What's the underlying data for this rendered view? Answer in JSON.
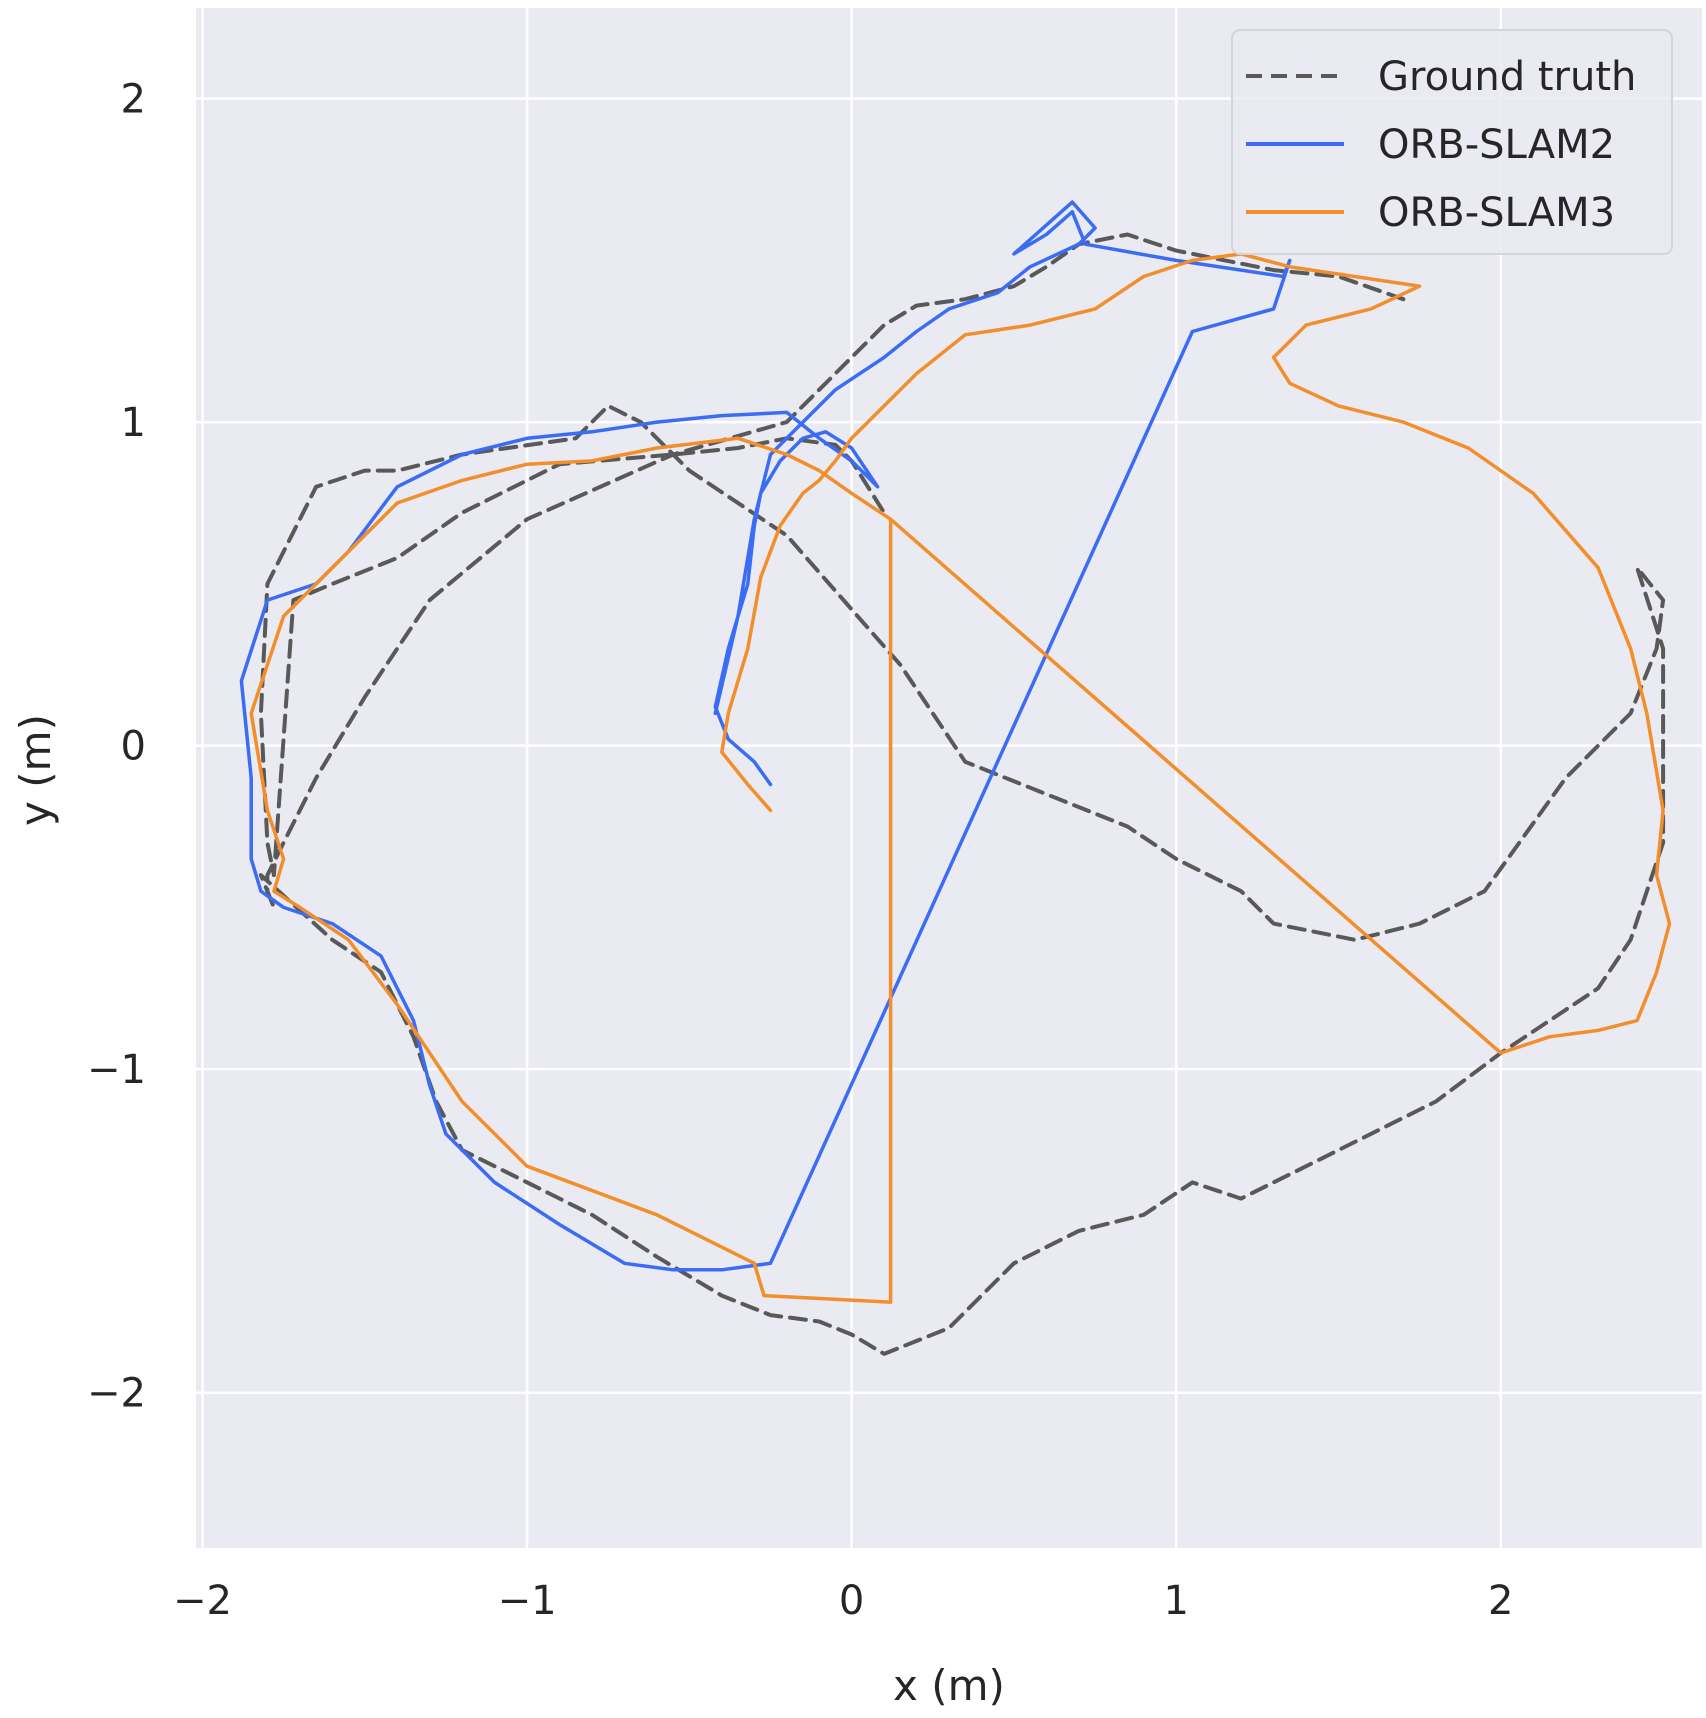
{
  "chart_data": {
    "type": "line",
    "title": "",
    "xlabel": "x (m)",
    "ylabel": "y (m)",
    "xlim": [
      -2.02,
      2.62
    ],
    "ylim": [
      -2.48,
      2.28
    ],
    "xticks": [
      -2,
      -1,
      0,
      1,
      2
    ],
    "yticks": [
      -2,
      -1,
      0,
      1,
      2
    ],
    "xtick_labels": [
      "−2",
      "−1",
      "0",
      "1",
      "2"
    ],
    "ytick_labels": [
      "−2",
      "−1",
      "0",
      "1",
      "2"
    ],
    "grid": true,
    "background": "#eaeaf2",
    "legend_position": "top-right",
    "series": [
      {
        "name": "Ground truth",
        "color": "#595959",
        "dash": true,
        "x": [
          1.7,
          1.5,
          1.3,
          1.15,
          1.0,
          0.85,
          0.7,
          0.6,
          0.5,
          0.35,
          0.2,
          0.1,
          0.0,
          -0.2,
          -0.55,
          -1.0,
          -1.3,
          -1.5,
          -1.65,
          -1.75,
          -1.8,
          -1.8,
          -1.78,
          -1.82,
          -1.6,
          -1.45,
          -1.35,
          -1.28,
          -1.2,
          -1.0,
          -0.8,
          -0.6,
          -0.4,
          -0.25,
          -0.1,
          0.0,
          0.1,
          0.3,
          0.5,
          0.7,
          0.9,
          1.05,
          1.2,
          1.5,
          1.8,
          2.0,
          2.3,
          2.4,
          2.5,
          2.5,
          2.42,
          2.5,
          2.48,
          2.4,
          2.2,
          1.95,
          1.75,
          1.55,
          1.3,
          1.2,
          1.0,
          0.85,
          0.35,
          0.15,
          -0.2,
          -0.5,
          -0.65,
          -0.75,
          -0.85,
          -1.2,
          -1.4,
          -1.5,
          -1.65,
          -1.8,
          -1.82,
          -1.8,
          -1.78,
          -1.72,
          -1.6,
          -1.4,
          -1.2,
          -0.9,
          -0.55,
          -0.35,
          -0.2,
          -0.05,
          0.0,
          0.05,
          0.1
        ],
        "y": [
          1.38,
          1.45,
          1.47,
          1.5,
          1.53,
          1.58,
          1.55,
          1.48,
          1.42,
          1.38,
          1.36,
          1.3,
          1.2,
          1.0,
          0.9,
          0.7,
          0.45,
          0.15,
          -0.1,
          -0.3,
          -0.4,
          -0.45,
          -0.5,
          -0.4,
          -0.6,
          -0.7,
          -0.9,
          -1.1,
          -1.25,
          -1.35,
          -1.45,
          -1.58,
          -1.7,
          -1.76,
          -1.78,
          -1.82,
          -1.88,
          -1.8,
          -1.6,
          -1.5,
          -1.45,
          -1.35,
          -1.4,
          -1.25,
          -1.1,
          -0.95,
          -0.75,
          -0.6,
          -0.3,
          0.3,
          0.55,
          0.45,
          0.3,
          0.1,
          -0.1,
          -0.45,
          -0.55,
          -0.6,
          -0.55,
          -0.45,
          -0.35,
          -0.25,
          -0.05,
          0.25,
          0.65,
          0.85,
          1.0,
          1.05,
          0.95,
          0.9,
          0.85,
          0.85,
          0.8,
          0.5,
          0.1,
          -0.3,
          -0.4,
          0.45,
          0.5,
          0.58,
          0.72,
          0.87,
          0.9,
          0.92,
          0.95,
          0.93,
          0.88,
          0.8,
          0.72
        ]
      },
      {
        "name": "ORB-SLAM2",
        "color": "#3a6cf4",
        "dash": false,
        "x": [
          -0.25,
          -0.3,
          -0.38,
          -0.42,
          -0.38,
          -0.32,
          -0.3,
          -0.28,
          -0.22,
          -0.15,
          -0.08,
          0.0,
          0.08,
          0.0,
          -0.1,
          -0.2,
          -0.4,
          -0.6,
          -0.8,
          -1.0,
          -1.2,
          -1.4,
          -1.55,
          -1.65,
          -1.8,
          -1.88,
          -1.85,
          -1.85,
          -1.82,
          -1.75,
          -1.6,
          -1.45,
          -1.35,
          -1.3,
          -1.25,
          -1.1,
          -0.9,
          -0.7,
          -0.55,
          -0.4,
          -0.25,
          1.05,
          1.3,
          1.35,
          1.33,
          1.0,
          0.72,
          0.68,
          0.6,
          0.5,
          0.68,
          0.75,
          0.7,
          0.55,
          0.45,
          0.3,
          0.2,
          0.1,
          -0.05,
          -0.15,
          -0.25,
          -0.3,
          -0.35,
          -0.42
        ],
        "y": [
          -0.12,
          -0.05,
          0.02,
          0.12,
          0.3,
          0.5,
          0.68,
          0.78,
          0.88,
          0.95,
          0.97,
          0.92,
          0.8,
          0.88,
          0.95,
          1.03,
          1.02,
          1.0,
          0.97,
          0.95,
          0.9,
          0.8,
          0.6,
          0.5,
          0.45,
          0.2,
          -0.1,
          -0.35,
          -0.45,
          -0.5,
          -0.55,
          -0.65,
          -0.85,
          -1.05,
          -1.2,
          -1.35,
          -1.48,
          -1.6,
          -1.62,
          -1.62,
          -1.6,
          1.28,
          1.35,
          1.5,
          1.45,
          1.5,
          1.55,
          1.65,
          1.58,
          1.52,
          1.68,
          1.6,
          1.55,
          1.48,
          1.4,
          1.35,
          1.28,
          1.2,
          1.1,
          1.0,
          0.9,
          0.7,
          0.4,
          0.1
        ]
      },
      {
        "name": "ORB-SLAM3",
        "color": "#f28e2b",
        "dash": false,
        "x": [
          -0.25,
          -0.32,
          -0.4,
          -0.38,
          -0.32,
          -0.28,
          -0.22,
          -0.15,
          -0.1,
          -0.05,
          0.0,
          0.1,
          0.2,
          0.35,
          0.55,
          0.75,
          0.9,
          1.05,
          1.2,
          1.35,
          1.55,
          1.75,
          1.6,
          1.4,
          1.3,
          1.35,
          1.5,
          1.7,
          1.9,
          2.1,
          2.3,
          2.4,
          2.45,
          2.5,
          2.48,
          2.52,
          2.48,
          2.42,
          2.3,
          2.15,
          2.0,
          0.12,
          0.0,
          -0.1,
          -0.2,
          -0.35,
          -0.6,
          -0.8,
          -1.0,
          -1.2,
          -1.4,
          -1.55,
          -1.65,
          -1.75,
          -1.85,
          -1.8,
          -1.75,
          -1.78,
          -1.7,
          -1.55,
          -1.4,
          -1.2,
          -1.0,
          -0.6,
          -0.3,
          -0.27,
          0.12,
          0.12
        ],
        "y": [
          -0.2,
          -0.12,
          -0.02,
          0.1,
          0.3,
          0.52,
          0.68,
          0.78,
          0.82,
          0.88,
          0.95,
          1.05,
          1.15,
          1.27,
          1.3,
          1.35,
          1.45,
          1.5,
          1.52,
          1.48,
          1.45,
          1.42,
          1.35,
          1.3,
          1.2,
          1.12,
          1.05,
          1.0,
          0.92,
          0.78,
          0.55,
          0.3,
          0.1,
          -0.2,
          -0.4,
          -0.55,
          -0.7,
          -0.85,
          -0.88,
          -0.9,
          -0.95,
          0.7,
          0.78,
          0.85,
          0.9,
          0.95,
          0.92,
          0.88,
          0.87,
          0.82,
          0.75,
          0.6,
          0.5,
          0.4,
          0.1,
          -0.2,
          -0.35,
          -0.45,
          -0.5,
          -0.6,
          -0.8,
          -1.1,
          -1.3,
          -1.45,
          -1.6,
          -1.7,
          -1.72,
          0.7
        ]
      }
    ]
  }
}
